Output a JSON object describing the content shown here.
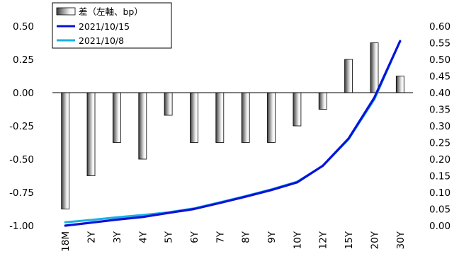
{
  "chart_data": {
    "type": "bar+line",
    "categories": [
      "18M",
      "2Y",
      "3Y",
      "4Y",
      "5Y",
      "6Y",
      "7Y",
      "8Y",
      "9Y",
      "10Y",
      "12Y",
      "15Y",
      "20Y",
      "30Y"
    ],
    "bar_series": {
      "name": "差（左軸、bp）",
      "axis": "left",
      "values": [
        -0.875,
        -0.625,
        -0.375,
        -0.5,
        -0.17,
        -0.375,
        -0.375,
        -0.375,
        -0.375,
        -0.25,
        -0.125,
        0.25,
        0.375,
        0.125
      ]
    },
    "line_series": [
      {
        "name": "2021/10/15",
        "axis": "right",
        "color": "#0a12d8",
        "values": [
          0.0,
          0.009,
          0.018,
          0.026,
          0.038,
          0.05,
          0.068,
          0.087,
          0.107,
          0.13,
          0.18,
          0.262,
          0.385,
          0.555
        ]
      },
      {
        "name": "2021/10/8",
        "axis": "right",
        "color": "#1ab0e6",
        "values": [
          0.01,
          0.017,
          0.025,
          0.032,
          0.04,
          0.052,
          0.07,
          0.089,
          0.109,
          0.132,
          0.18,
          0.26,
          0.38,
          0.555
        ]
      }
    ],
    "left_axis": {
      "min": -1.0,
      "max": 0.5,
      "ticks": [
        "0.50",
        "0.25",
        "0.00",
        "-0.25",
        "-0.50",
        "-0.75",
        "-1.00"
      ]
    },
    "right_axis": {
      "min": 0.0,
      "max": 0.6,
      "ticks": [
        "0.60",
        "0.55",
        "0.50",
        "0.45",
        "0.40",
        "0.35",
        "0.30",
        "0.25",
        "0.20",
        "0.15",
        "0.10",
        "0.05",
        "0.00"
      ]
    },
    "grid": false,
    "legend_position": "top-left"
  }
}
